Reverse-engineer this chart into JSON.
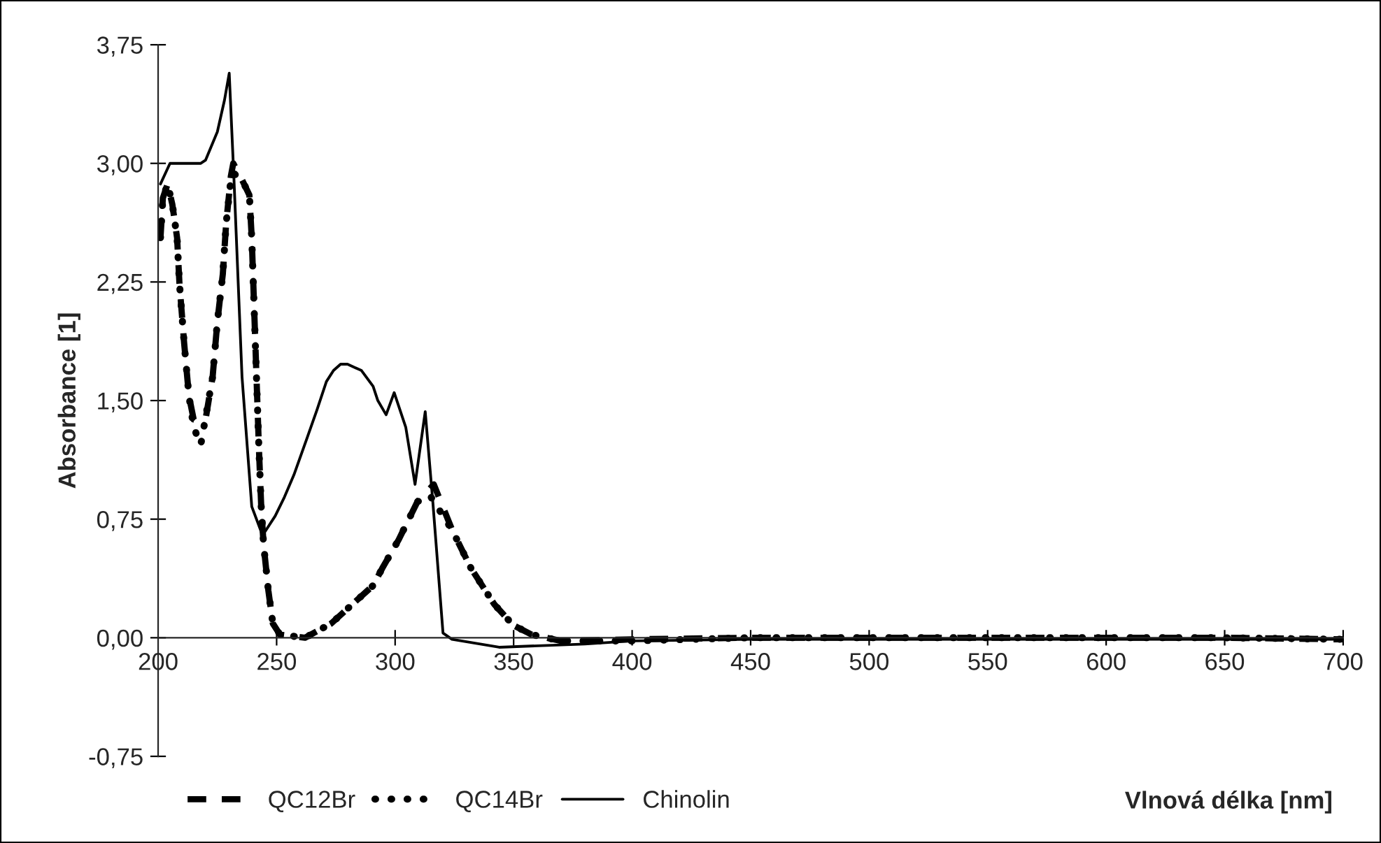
{
  "chart_data": {
    "type": "line",
    "xlabel": "Vlnová délka [nm]",
    "ylabel": "Absorbance [1]",
    "xlim": [
      200,
      700
    ],
    "xticks": [
      200,
      250,
      300,
      350,
      400,
      450,
      500,
      550,
      600,
      650,
      700
    ],
    "ylim": [
      -0.75,
      3.75
    ],
    "yticks": [
      {
        "value": -0.75,
        "label": "-0,75"
      },
      {
        "value": 0,
        "label": "0,00"
      },
      {
        "value": 0.75,
        "label": "0,75"
      },
      {
        "value": 1.5,
        "label": "1,50"
      },
      {
        "value": 2.25,
        "label": "2,25"
      },
      {
        "value": 3.0,
        "label": "3,00"
      },
      {
        "value": 3.75,
        "label": "3,75"
      }
    ],
    "grid": false,
    "legend": "bottom left",
    "marker": "none",
    "series": [
      {
        "name": "QC12Br",
        "color": "#000000",
        "line_style": "dashed",
        "x": [
          201,
          202,
          204,
          206,
          208,
          209,
          211,
          213,
          215,
          220,
          223,
          225,
          227.3,
          228.7,
          230.7,
          231.7,
          235.6,
          238.5,
          239.5,
          240.5,
          241.5,
          242.5,
          243.5,
          244.5,
          246.5,
          248.4,
          251.4,
          262,
          273,
          284.8,
          290.7,
          294.6,
          301.5,
          309.4,
          316.3,
          324.1,
          332,
          341.9,
          349.8,
          357.6,
          370,
          400,
          450,
          500,
          550,
          600,
          650,
          700
        ],
        "values": [
          2.53,
          2.78,
          2.87,
          2.74,
          2.53,
          2.24,
          1.86,
          1.53,
          1.38,
          1.38,
          1.65,
          2.0,
          2.3,
          2.62,
          2.92,
          3.0,
          2.89,
          2.8,
          2.53,
          2.09,
          1.65,
          1.21,
          0.83,
          0.59,
          0.3,
          0.09,
          0.02,
          0.0,
          0.09,
          0.25,
          0.33,
          0.44,
          0.62,
          0.86,
          0.97,
          0.68,
          0.44,
          0.21,
          0.08,
          0.02,
          -0.02,
          -0.01,
          0.0,
          0.0,
          0.0,
          0.0,
          0.0,
          -0.01
        ]
      },
      {
        "name": "QC14Br",
        "color": "#000000",
        "line_style": "dotted",
        "x": [
          201,
          202,
          204,
          206,
          208,
          209,
          211,
          213,
          215,
          218,
          223,
          225,
          227.3,
          228.7,
          230.7,
          231.7,
          235.6,
          238.5,
          239.5,
          240.5,
          241.5,
          242.5,
          243.5,
          244.5,
          246.5,
          248.4,
          251.4,
          262,
          273,
          284.8,
          290.7,
          294.6,
          301.5,
          309.4,
          314.7,
          324.1,
          332,
          341.9,
          349.8,
          357.6,
          370,
          400,
          450,
          500,
          550,
          600,
          650,
          700
        ],
        "values": [
          2.53,
          2.78,
          2.87,
          2.74,
          2.53,
          2.24,
          1.86,
          1.53,
          1.33,
          1.22,
          1.65,
          2.0,
          2.3,
          2.62,
          2.9,
          2.94,
          2.89,
          2.8,
          2.53,
          2.09,
          1.65,
          1.21,
          0.83,
          0.59,
          0.3,
          0.09,
          0.02,
          0.0,
          0.09,
          0.25,
          0.33,
          0.44,
          0.62,
          0.86,
          0.9,
          0.68,
          0.44,
          0.21,
          0.08,
          0.02,
          -0.02,
          -0.02,
          0.0,
          0.0,
          0.0,
          0.0,
          0.0,
          -0.01
        ]
      },
      {
        "name": "Chinolin",
        "color": "#000000",
        "line_style": "solid",
        "x": [
          201,
          205,
          218,
          220,
          225,
          228,
          230,
          232,
          235.4,
          239.5,
          244,
          245.5,
          249.4,
          253.3,
          257.3,
          263,
          267,
          271,
          274,
          277,
          279.9,
          285.8,
          290.7,
          292.7,
          296.2,
          299.6,
          304.5,
          308.4,
          312.7,
          315.9,
          320.2,
          324,
          343.9,
          380,
          400,
          450,
          500,
          600,
          700
        ],
        "values": [
          2.87,
          3.0,
          3.0,
          3.02,
          3.2,
          3.4,
          3.57,
          2.9,
          1.65,
          0.83,
          0.65,
          0.68,
          0.77,
          0.89,
          1.03,
          1.27,
          1.44,
          1.62,
          1.69,
          1.73,
          1.73,
          1.69,
          1.59,
          1.5,
          1.41,
          1.55,
          1.33,
          0.97,
          1.43,
          0.86,
          0.03,
          -0.01,
          -0.06,
          -0.04,
          -0.02,
          -0.01,
          -0.01,
          -0.01,
          -0.01
        ]
      }
    ]
  }
}
